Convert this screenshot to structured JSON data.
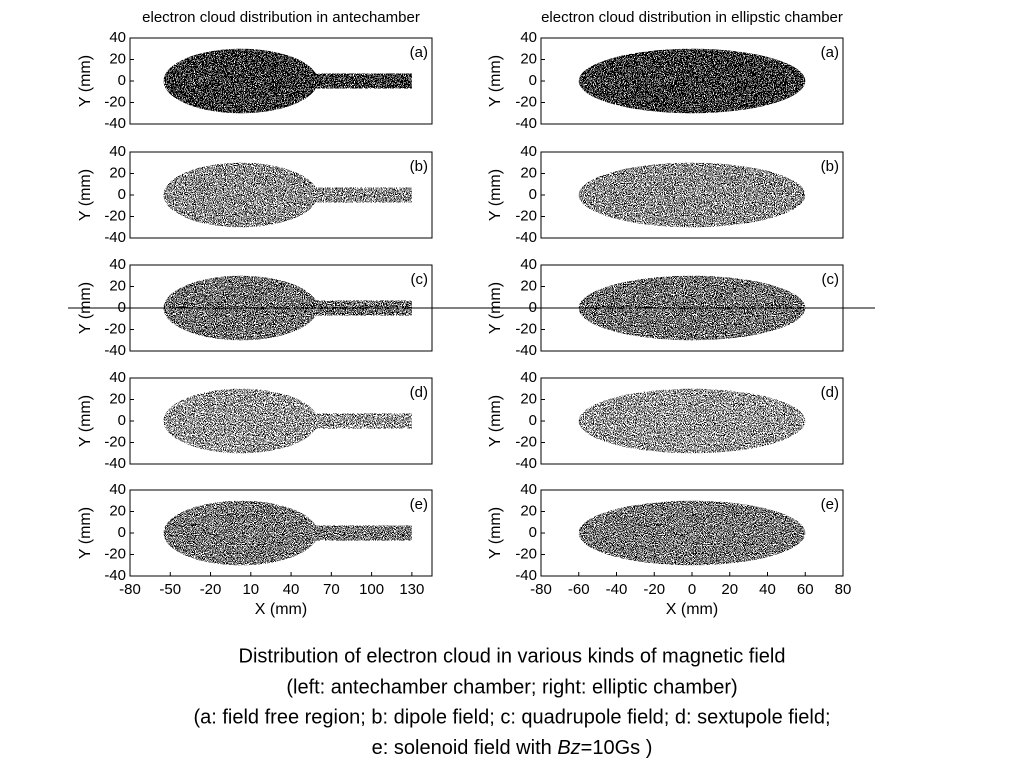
{
  "chart_data": [
    {
      "type": "density",
      "title": "electron cloud distribution in antechamber",
      "ylabel": "Y (mm)",
      "panel_label": "(a)",
      "xlim": [
        -80,
        145
      ],
      "ylim": [
        -40,
        40
      ],
      "yticks": [
        -40,
        -20,
        0,
        20,
        40
      ]
    },
    {
      "type": "density",
      "ylabel": "Y (mm)",
      "panel_label": "(b)",
      "xlim": [
        -80,
        145
      ],
      "ylim": [
        -40,
        40
      ],
      "yticks": [
        -40,
        -20,
        0,
        20,
        40
      ]
    },
    {
      "type": "density",
      "ylabel": "Y (mm)",
      "panel_label": "(c)",
      "xlim": [
        -80,
        145
      ],
      "ylim": [
        -40,
        40
      ],
      "yticks": [
        -40,
        -20,
        0,
        20,
        40
      ]
    },
    {
      "type": "density",
      "ylabel": "Y (mm)",
      "panel_label": "(d)",
      "xlim": [
        -80,
        145
      ],
      "ylim": [
        -40,
        40
      ],
      "yticks": [
        -40,
        -20,
        0,
        20,
        40
      ]
    },
    {
      "type": "density",
      "xlabel": "X (mm)",
      "ylabel": "Y (mm)",
      "panel_label": "(e)",
      "xlim": [
        -80,
        145
      ],
      "ylim": [
        -40,
        40
      ],
      "xticks": [
        -80,
        -50,
        -20,
        10,
        40,
        70,
        100,
        130
      ],
      "yticks": [
        -40,
        -20,
        0,
        20,
        40
      ]
    },
    {
      "type": "density",
      "title": "electron cloud distribution in ellipstic chamber",
      "ylabel": "Y (mm)",
      "panel_label": "(a)",
      "xlim": [
        -80,
        80
      ],
      "ylim": [
        -40,
        40
      ],
      "yticks": [
        -40,
        -20,
        0,
        20,
        40
      ]
    },
    {
      "type": "density",
      "ylabel": "Y (mm)",
      "panel_label": "(b)",
      "xlim": [
        -80,
        80
      ],
      "ylim": [
        -40,
        40
      ],
      "yticks": [
        -40,
        -20,
        0,
        20,
        40
      ]
    },
    {
      "type": "density",
      "ylabel": "Y (mm)",
      "panel_label": "(c)",
      "xlim": [
        -80,
        80
      ],
      "ylim": [
        -40,
        40
      ],
      "yticks": [
        -40,
        -20,
        0,
        20,
        40
      ]
    },
    {
      "type": "density",
      "ylabel": "Y (mm)",
      "panel_label": "(d)",
      "xlim": [
        -80,
        80
      ],
      "ylim": [
        -40,
        40
      ],
      "yticks": [
        -40,
        -20,
        0,
        20,
        40
      ]
    },
    {
      "type": "density",
      "xlabel": "X (mm)",
      "ylabel": "Y (mm)",
      "panel_label": "(e)",
      "xlim": [
        -80,
        80
      ],
      "ylim": [
        -40,
        40
      ],
      "xticks": [
        -80,
        -60,
        -40,
        -20,
        0,
        20,
        40,
        60,
        80
      ],
      "yticks": [
        -40,
        -20,
        0,
        20,
        40
      ]
    }
  ],
  "caption": [
    "Distribution of electron cloud in various kinds of magnetic field",
    "(left: antechamber chamber; right: elliptic chamber)",
    "(a: field free region; b: dipole field; c: quadrupole field; d: sextupole field;",
    {
      "before": "e: solenoid field with ",
      "italic": "Bz",
      "after": "=10Gs )"
    }
  ]
}
